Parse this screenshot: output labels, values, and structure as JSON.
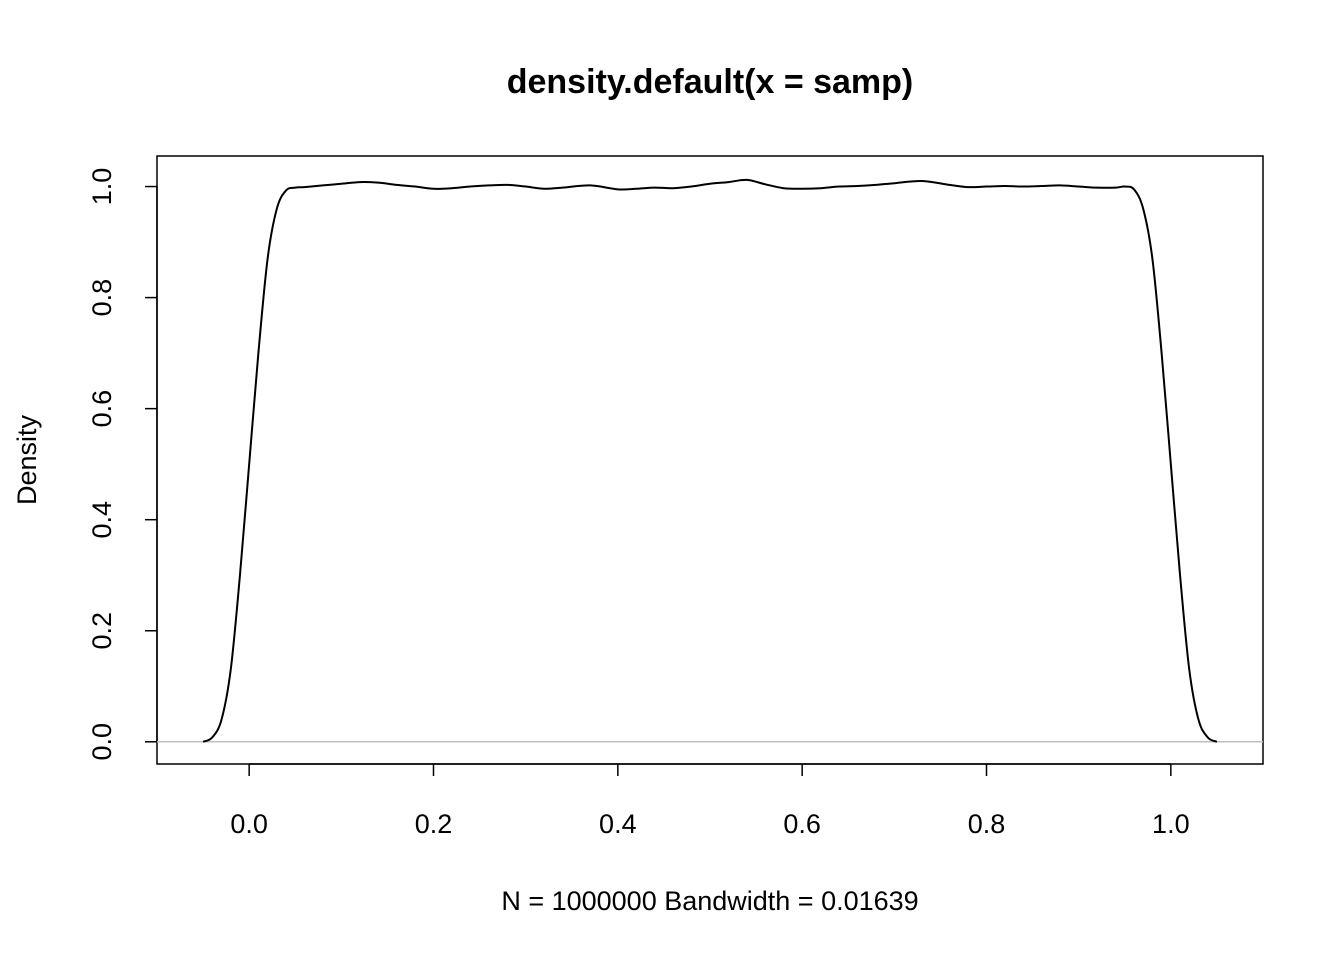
{
  "chart_data": {
    "type": "line",
    "title": "density.default(x = samp)",
    "xlabel": "N = 1000000   Bandwidth = 0.01639",
    "ylabel": "Density",
    "xlim": [
      -0.1,
      1.1
    ],
    "ylim": [
      -0.04,
      1.055
    ],
    "x_ticks": [
      "0.0",
      "0.2",
      "0.4",
      "0.6",
      "0.8",
      "1.0"
    ],
    "y_ticks": [
      "0.0",
      "0.2",
      "0.4",
      "0.6",
      "0.8",
      "1.0"
    ],
    "grid": false,
    "baseline_y": 0,
    "baseline_color": "#c0c0c0",
    "line_color": "#000000",
    "series": [
      {
        "x": [
          -0.05,
          -0.04,
          -0.03,
          -0.02,
          -0.01,
          0.0,
          0.01,
          0.02,
          0.03,
          0.04,
          0.05,
          0.06,
          0.08,
          0.1,
          0.12,
          0.14,
          0.16,
          0.18,
          0.2,
          0.22,
          0.24,
          0.26,
          0.28,
          0.3,
          0.32,
          0.34,
          0.37,
          0.4,
          0.42,
          0.44,
          0.46,
          0.48,
          0.5,
          0.52,
          0.54,
          0.56,
          0.58,
          0.6,
          0.62,
          0.64,
          0.66,
          0.68,
          0.7,
          0.73,
          0.76,
          0.78,
          0.8,
          0.82,
          0.84,
          0.86,
          0.88,
          0.9,
          0.92,
          0.94,
          0.95,
          0.96,
          0.97,
          0.98,
          0.99,
          1.0,
          1.01,
          1.02,
          1.03,
          1.04,
          1.05
        ],
        "y": [
          0.0,
          0.008,
          0.04,
          0.13,
          0.3,
          0.5,
          0.7,
          0.87,
          0.96,
          0.993,
          0.998,
          0.999,
          1.002,
          1.005,
          1.008,
          1.007,
          1.003,
          1.0,
          0.996,
          0.997,
          1.0,
          1.002,
          1.003,
          1.0,
          0.996,
          0.998,
          1.002,
          0.995,
          0.996,
          0.998,
          0.997,
          1.0,
          1.005,
          1.008,
          1.012,
          1.004,
          0.997,
          0.996,
          0.997,
          1.0,
          1.001,
          1.003,
          1.006,
          1.01,
          1.003,
          0.999,
          1.0,
          1.001,
          1.0,
          1.001,
          1.002,
          1.0,
          0.998,
          0.998,
          1.0,
          0.995,
          0.96,
          0.87,
          0.7,
          0.5,
          0.3,
          0.13,
          0.04,
          0.008,
          0.0
        ]
      }
    ]
  }
}
